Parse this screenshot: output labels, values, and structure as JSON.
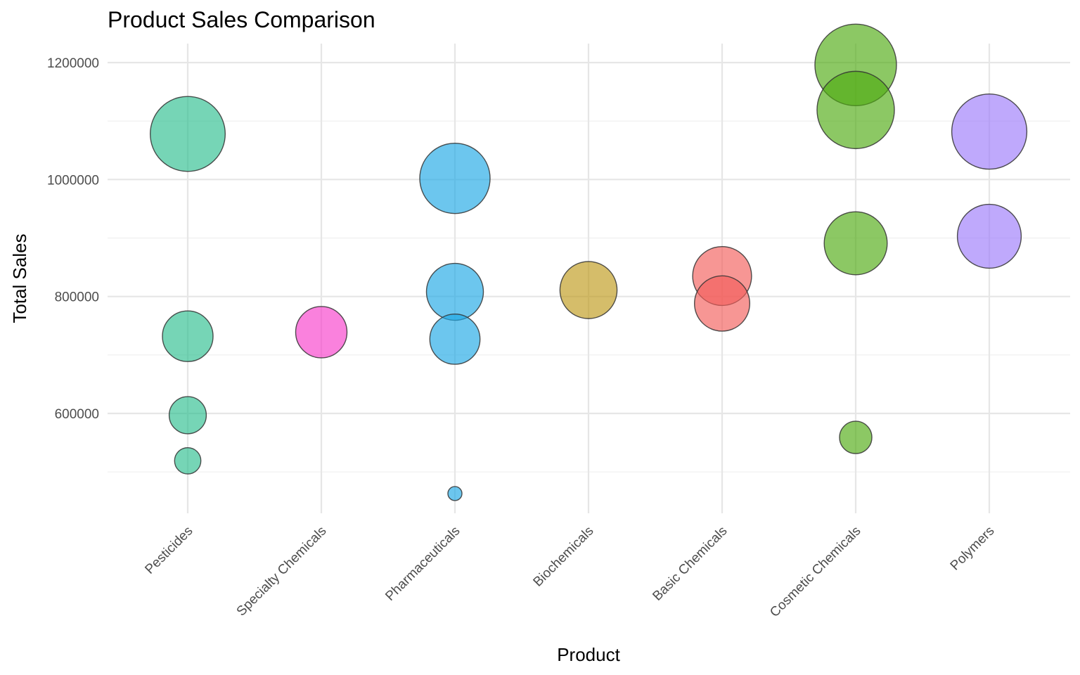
{
  "chart_data": {
    "type": "scatter",
    "title": "Product Sales Comparison",
    "xlabel": "Product",
    "ylabel": "Total Sales",
    "categories": [
      "Pesticides",
      "Specialty Chemicals",
      "Pharmaceuticals",
      "Biochemicals",
      "Basic Chemicals",
      "Cosmetic Chemicals",
      "Polymers"
    ],
    "colors": {
      "Pesticides": "#2CBF8F",
      "Specialty Chemicals": "#F73ECB",
      "Pharmaceuticals": "#1DA8E5",
      "Biochemicals": "#BE9A1A",
      "Basic Chemicals": "#F35D5A",
      "Cosmetic Chemicals": "#4EAA11",
      "Polymers": "#9C7BFA"
    },
    "ylim": [
      430000,
      1235000
    ],
    "yticks": [
      600000,
      800000,
      1000000,
      1200000
    ],
    "yticks_minor": [
      500000,
      700000,
      900000,
      1100000
    ],
    "grid": true,
    "legend": "none",
    "size_note": "bubble size encodes Total Sales",
    "points": [
      {
        "category": "Pesticides",
        "y": 1078000
      },
      {
        "category": "Pesticides",
        "y": 732000
      },
      {
        "category": "Pesticides",
        "y": 597000
      },
      {
        "category": "Pesticides",
        "y": 519000
      },
      {
        "category": "Specialty Chemicals",
        "y": 739000
      },
      {
        "category": "Pharmaceuticals",
        "y": 1002000
      },
      {
        "category": "Pharmaceuticals",
        "y": 808000
      },
      {
        "category": "Pharmaceuticals",
        "y": 727000
      },
      {
        "category": "Pharmaceuticals",
        "y": 463000
      },
      {
        "category": "Biochemicals",
        "y": 811000
      },
      {
        "category": "Basic Chemicals",
        "y": 835000
      },
      {
        "category": "Basic Chemicals",
        "y": 788000
      },
      {
        "category": "Cosmetic Chemicals",
        "y": 1196000
      },
      {
        "category": "Cosmetic Chemicals",
        "y": 1119000
      },
      {
        "category": "Cosmetic Chemicals",
        "y": 891000
      },
      {
        "category": "Cosmetic Chemicals",
        "y": 559000
      },
      {
        "category": "Polymers",
        "y": 1082000
      },
      {
        "category": "Polymers",
        "y": 903000
      }
    ]
  }
}
